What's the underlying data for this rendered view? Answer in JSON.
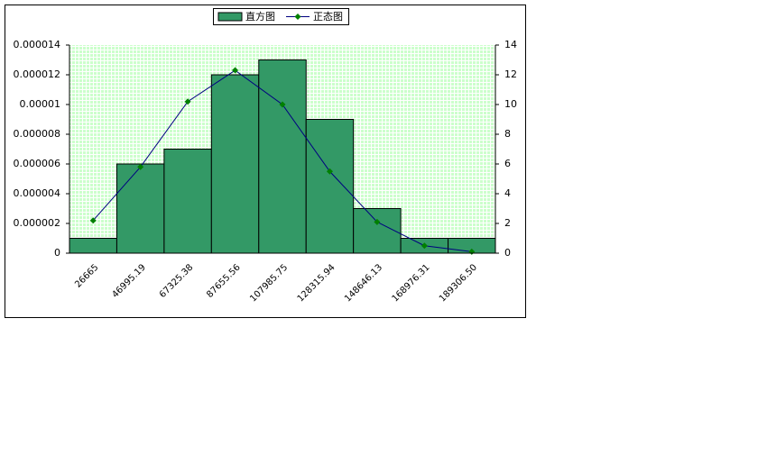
{
  "chart_data": {
    "type": "bar",
    "categories": [
      "26665",
      "46995.19",
      "67325.38",
      "87655.56",
      "107985.75",
      "128315.94",
      "148646.13",
      "168976.31",
      "189306.50"
    ],
    "series": [
      {
        "name": "直方图",
        "type": "bar",
        "axis": "y2",
        "color": "#339966",
        "values": [
          1,
          6,
          7,
          12,
          13,
          9,
          3,
          1,
          1
        ]
      },
      {
        "name": "正态图",
        "type": "line",
        "axis": "y",
        "color": "#000080",
        "marker_color": "#008000",
        "values": [
          2.2e-06,
          5.8e-06,
          1.02e-05,
          1.23e-05,
          1e-05,
          5.5e-06,
          2.1e-06,
          5e-07,
          1e-07
        ]
      }
    ],
    "ylim": [
      0,
      1.4e-05
    ],
    "yticks": [
      0,
      2e-06,
      4e-06,
      6e-06,
      8e-06,
      1e-05,
      1.2e-05,
      1.4e-05
    ],
    "y2lim": [
      0,
      14
    ],
    "y2ticks": [
      0,
      2,
      4,
      6,
      8,
      10,
      12,
      14
    ],
    "legend": "top"
  }
}
